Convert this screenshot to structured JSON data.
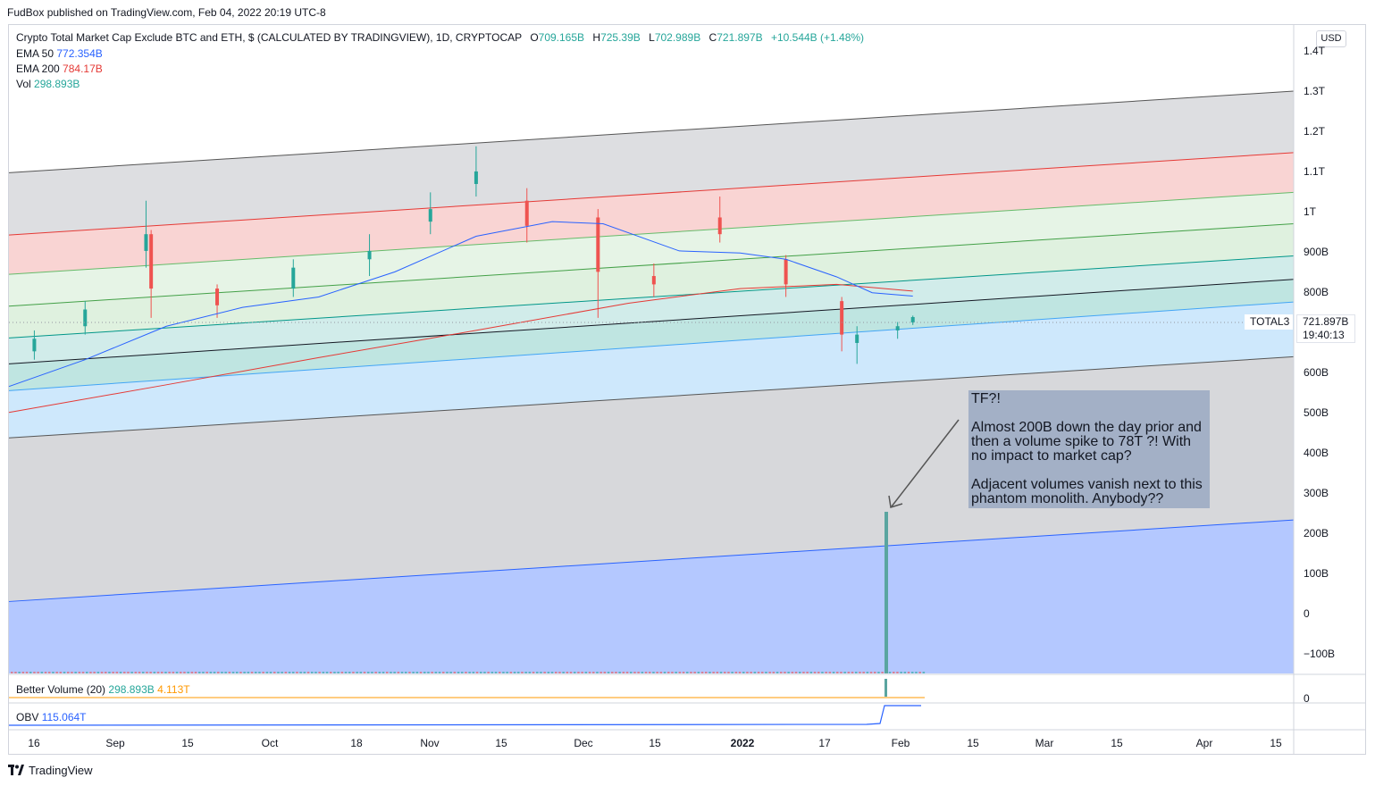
{
  "header": {
    "text": "FudBox published on TradingView.com, Feb 04, 2022 20:19 UTC-8"
  },
  "legend": {
    "title": "Crypto Total Market Cap Exclude BTC and ETH, $ (CALCULATED BY TRADINGVIEW), 1D, CRYPTOCAP",
    "o_label": "O",
    "o_value": "709.165B",
    "h_label": "H",
    "h_value": "725.39B",
    "l_label": "L",
    "l_value": "702.989B",
    "c_label": "C",
    "c_value": "721.897B",
    "change": "+10.544B (+1.48%)",
    "ema50_label": "EMA 50",
    "ema50_value": "772.354B",
    "ema200_label": "EMA 200",
    "ema200_value": "784.17B",
    "vol_label": "Vol",
    "vol_value": "298.893B"
  },
  "better_volume": {
    "label": "Better Volume (20)",
    "value1": "298.893B",
    "value2": "4.113T",
    "axis_zero": "0"
  },
  "obv": {
    "label": "OBV",
    "value": "115.064T"
  },
  "price_axis": {
    "currency": "USD",
    "labels": [
      "1.4T",
      "1.3T",
      "1.2T",
      "1.1T",
      "1T",
      "900B",
      "800B",
      "700B",
      "600B",
      "500B",
      "400B",
      "300B",
      "200B",
      "100B",
      "0",
      "−100B"
    ],
    "symbol": "TOTAL3",
    "last_price": "721.897B",
    "countdown": "19:40:13"
  },
  "time_axis": {
    "labels": [
      "16",
      "Sep",
      "15",
      "Oct",
      "18",
      "Nov",
      "15",
      "Dec",
      "15",
      "2022",
      "17",
      "Feb",
      "15",
      "Mar",
      "15",
      "Apr",
      "15"
    ],
    "bold": [
      "2022"
    ]
  },
  "annotation": {
    "lines": [
      "TF?!",
      "Almost 200B down the day prior and then a volume spike to 78T ?! With no impact to market cap?",
      "Adjacent volumes vanish next to this phantom monolith. Anybody??"
    ]
  },
  "footer": {
    "brand": "TradingView"
  },
  "colors": {
    "up": "#26a69a",
    "down": "#ef5350",
    "ema50": "#2962ff",
    "ema200": "#e53935",
    "volume_spike": "#26a69a",
    "obv": "#2962ff"
  },
  "chart_data": {
    "type": "candlestick",
    "symbol": "TOTAL3",
    "timeframe": "1D",
    "y_axis_range": [
      -130,
      1420
    ],
    "y_unit": "B USD",
    "x_range": [
      "2021-08-10",
      "2022-04-20"
    ],
    "regression_channel": {
      "center_line": {
        "start": [
          "2021-08-10",
          610
        ],
        "end": [
          "2022-04-20",
          812
        ]
      },
      "upper_bands": [
        {
          "start": [
            "2021-08-10",
            672
          ],
          "end": [
            "2022-04-20",
            868
          ]
        },
        {
          "start": [
            "2021-08-10",
            748
          ],
          "end": [
            "2022-04-20",
            945
          ]
        },
        {
          "start": [
            "2021-08-10",
            824
          ],
          "end": [
            "2022-04-20",
            1020
          ]
        },
        {
          "start": [
            "2021-08-10",
            918
          ],
          "end": [
            "2022-04-20",
            1115
          ]
        },
        {
          "start": [
            "2021-08-10",
            1067
          ],
          "end": [
            "2022-04-20",
            1262
          ]
        }
      ],
      "lower_bands": [
        {
          "start": [
            "2021-08-10",
            546
          ],
          "end": [
            "2022-04-20",
            758
          ]
        },
        {
          "start": [
            "2021-08-10",
            433
          ],
          "end": [
            "2022-04-20",
            627
          ]
        },
        {
          "start": [
            "2021-08-10",
            42
          ],
          "end": [
            "2022-04-20",
            237
          ]
        }
      ]
    },
    "ema50": [
      [
        "2021-08-10",
        556
      ],
      [
        "2021-08-25",
        620
      ],
      [
        "2021-09-10",
        700
      ],
      [
        "2021-09-25",
        745
      ],
      [
        "2021-10-10",
        770
      ],
      [
        "2021-10-25",
        830
      ],
      [
        "2021-11-10",
        915
      ],
      [
        "2021-11-25",
        950
      ],
      [
        "2021-12-05",
        945
      ],
      [
        "2021-12-20",
        880
      ],
      [
        "2022-01-01",
        875
      ],
      [
        "2022-01-10",
        860
      ],
      [
        "2022-01-20",
        818
      ],
      [
        "2022-01-27",
        780
      ],
      [
        "2022-02-04",
        772
      ]
    ],
    "ema200": [
      [
        "2021-08-10",
        494
      ],
      [
        "2021-09-10",
        560
      ],
      [
        "2021-10-10",
        625
      ],
      [
        "2021-11-10",
        690
      ],
      [
        "2021-12-10",
        755
      ],
      [
        "2022-01-01",
        790
      ],
      [
        "2022-01-20",
        800
      ],
      [
        "2022-02-04",
        784
      ]
    ],
    "ohlc_sample": [
      [
        "2021-08-15",
        640,
        690,
        620,
        670
      ],
      [
        "2021-08-25",
        700,
        760,
        680,
        740
      ],
      [
        "2021-09-06",
        880,
        1000,
        840,
        920
      ],
      [
        "2021-09-07",
        920,
        930,
        720,
        790
      ],
      [
        "2021-09-20",
        790,
        800,
        720,
        750
      ],
      [
        "2021-10-05",
        790,
        860,
        770,
        840
      ],
      [
        "2021-10-20",
        860,
        920,
        820,
        880
      ],
      [
        "2021-11-01",
        950,
        1020,
        920,
        980
      ],
      [
        "2021-11-10",
        1040,
        1130,
        1010,
        1070
      ],
      [
        "2021-11-20",
        1000,
        1030,
        900,
        940
      ],
      [
        "2021-12-04",
        960,
        980,
        720,
        830
      ],
      [
        "2021-12-15",
        820,
        850,
        770,
        800
      ],
      [
        "2021-12-28",
        960,
        1010,
        900,
        920
      ],
      [
        "2022-01-10",
        860,
        870,
        770,
        800
      ],
      [
        "2022-01-21",
        760,
        770,
        640,
        680
      ],
      [
        "2022-01-24",
        660,
        700,
        610,
        680
      ],
      [
        "2022-02-01",
        690,
        710,
        670,
        700
      ],
      [
        "2022-02-04",
        709.165,
        725.39,
        702.989,
        721.897
      ]
    ],
    "volume": {
      "unit": "B",
      "latest": 298.893,
      "spike": {
        "date": "2022-01-26",
        "value": 78000
      }
    },
    "better_volume_20": {
      "latest": 298.893,
      "ma": 4113
    },
    "obv": {
      "latest": 115064,
      "unit": "B"
    }
  }
}
